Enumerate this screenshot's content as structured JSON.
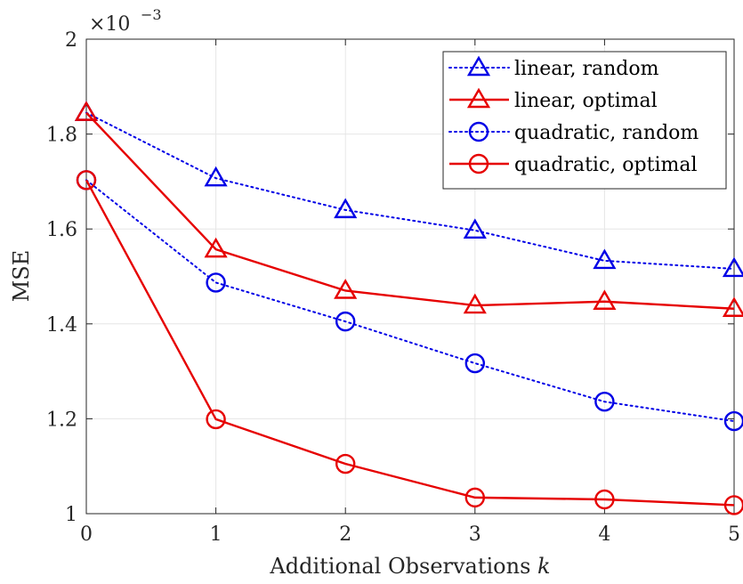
{
  "chart_data": {
    "type": "line",
    "xlabel": "Additional Observations",
    "xlabel_var": "k",
    "ylabel": "MSE",
    "exponent_label": "×10",
    "exponent_power": "−3",
    "x": [
      0,
      1,
      2,
      3,
      4,
      5
    ],
    "xlim": [
      0,
      5
    ],
    "ylim": [
      1,
      2
    ],
    "xticks": [
      0,
      1,
      2,
      3,
      4,
      5
    ],
    "yticks": [
      1,
      1.2,
      1.4,
      1.6,
      1.8,
      2
    ],
    "ytick_labels": [
      "1",
      "1.2",
      "1.4",
      "1.6",
      "1.8",
      "2"
    ],
    "grid": true,
    "legend_position": "top-right",
    "series": [
      {
        "name": "linear, random",
        "color": "#0000e6",
        "line": "dotted",
        "marker": "triangle",
        "values": [
          1.845,
          1.707,
          1.64,
          1.597,
          1.533,
          1.516
        ]
      },
      {
        "name": "linear, optimal",
        "color": "#e60000",
        "line": "solid",
        "marker": "triangle",
        "values": [
          1.845,
          1.557,
          1.47,
          1.439,
          1.447,
          1.432
        ]
      },
      {
        "name": "quadratic, random",
        "color": "#0000e6",
        "line": "dotted",
        "marker": "circle",
        "values": [
          1.703,
          1.487,
          1.405,
          1.317,
          1.236,
          1.195
        ]
      },
      {
        "name": "quadratic, optimal",
        "color": "#e60000",
        "line": "solid",
        "marker": "circle",
        "values": [
          1.703,
          1.199,
          1.105,
          1.034,
          1.03,
          1.018
        ]
      }
    ]
  }
}
